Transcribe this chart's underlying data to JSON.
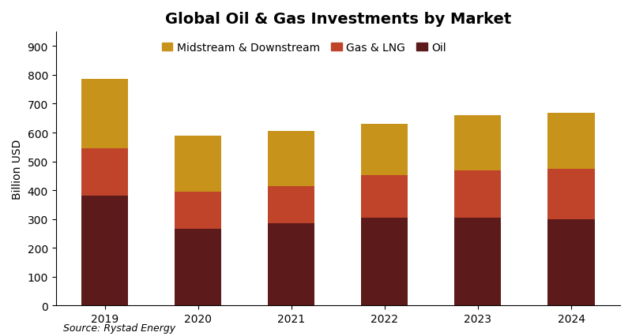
{
  "title": "Global Oil & Gas Investments by Market",
  "ylabel": "Billion USD",
  "source": "Source: Rystad Energy",
  "categories": [
    "2019",
    "2020",
    "2021",
    "2022",
    "2023",
    "2024"
  ],
  "oil": [
    380,
    265,
    285,
    305,
    305,
    300
  ],
  "gas_lng": [
    165,
    130,
    130,
    148,
    165,
    175
  ],
  "midstream": [
    240,
    195,
    190,
    178,
    190,
    193
  ],
  "oil_color": "#5C1A1A",
  "gas_color": "#C0442A",
  "midstream_color": "#C8931A",
  "ylim": [
    0,
    950
  ],
  "yticks": [
    0,
    100,
    200,
    300,
    400,
    500,
    600,
    700,
    800,
    900
  ],
  "legend_labels": [
    "Midstream & Downstream",
    "Gas & LNG",
    "Oil"
  ],
  "title_fontsize": 14,
  "axis_fontsize": 10,
  "tick_fontsize": 10,
  "source_fontsize": 9,
  "bar_width": 0.5
}
